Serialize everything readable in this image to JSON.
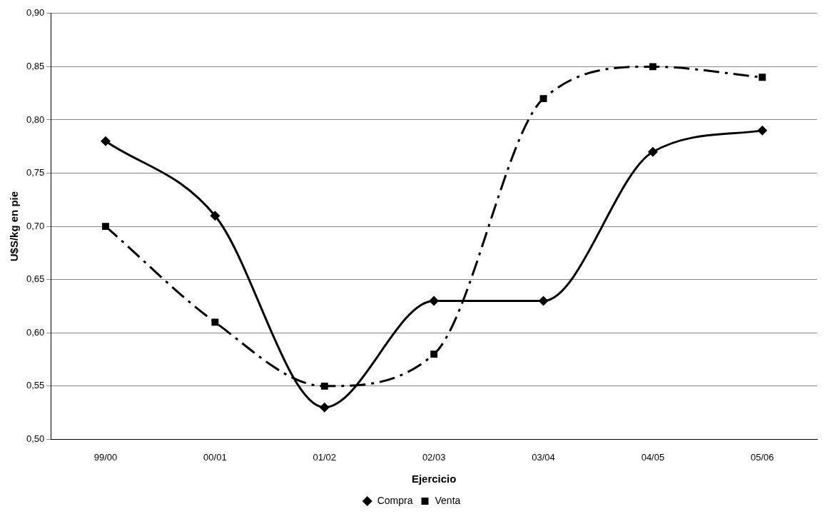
{
  "chart_data": {
    "type": "line",
    "xlabel": "Ejercicio",
    "ylabel": "U$S/kg en pie",
    "categories": [
      "99/00",
      "00/01",
      "01/02",
      "02/03",
      "03/04",
      "04/05",
      "05/06"
    ],
    "series": [
      {
        "name": "Compra",
        "color": "#000000",
        "values": [
          0.78,
          0.71,
          0.53,
          0.63,
          0.63,
          0.77,
          0.79
        ],
        "marker": "diamond",
        "line_style": "solid"
      },
      {
        "name": "Venta",
        "color": "#000000",
        "values": [
          0.7,
          0.61,
          0.55,
          0.58,
          0.82,
          0.85,
          0.84
        ],
        "marker": "square",
        "line_style": "dashed"
      }
    ],
    "ylim": [
      0.5,
      0.9
    ],
    "yticks": [
      {
        "value": 0.5,
        "label": "0,50"
      },
      {
        "value": 0.55,
        "label": "0,55"
      },
      {
        "value": 0.6,
        "label": "0,60"
      },
      {
        "value": 0.65,
        "label": "0,65"
      },
      {
        "value": 0.7,
        "label": "0,70"
      },
      {
        "value": 0.75,
        "label": "0,75"
      },
      {
        "value": 0.8,
        "label": "0,80"
      },
      {
        "value": 0.85,
        "label": "0,85"
      },
      {
        "value": 0.9,
        "label": "0,90"
      }
    ],
    "grid": "y",
    "legend": "bottom"
  }
}
